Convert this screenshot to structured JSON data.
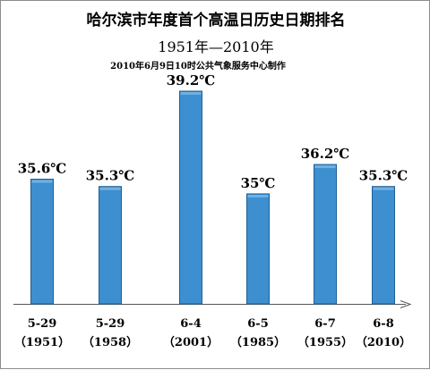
{
  "title": "哈尔滨市年度首个高温日历史日期排名",
  "subtitle": "1951年—2010年",
  "credit": "2010年6月9日10时公共气象服务中心制作",
  "chart_data": {
    "type": "bar",
    "categories": [
      "5-29",
      "5-29",
      "6-4",
      "6-5",
      "6-7",
      "6-8"
    ],
    "years": [
      "（1951）",
      "（1958）",
      "（2001）",
      "（1985）",
      "（1955）",
      "（2010）"
    ],
    "values": [
      35.6,
      35.3,
      39.2,
      35,
      36.2,
      35.3
    ],
    "value_labels": [
      "35.6℃",
      "35.3℃",
      "39.2℃",
      "35℃",
      "36.2℃",
      "35.3℃"
    ],
    "ylim": [
      30.5,
      39.2
    ],
    "grid": false,
    "bar_color": "#3d8fcf"
  }
}
